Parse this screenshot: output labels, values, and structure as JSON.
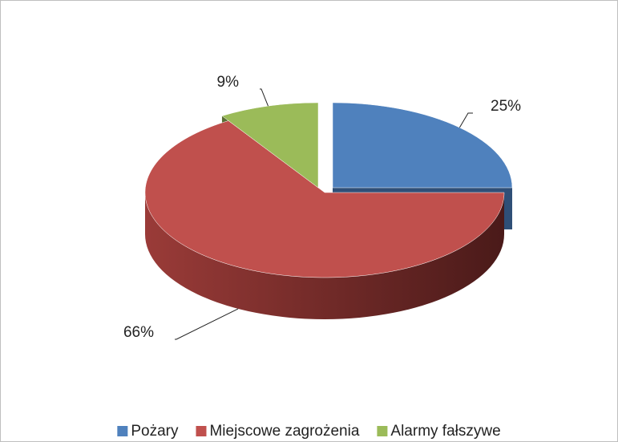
{
  "chart_data": {
    "type": "pie3d",
    "categories": [
      "Pożary",
      "Miejscowe zagrożenia",
      "Alarmy fałszywe"
    ],
    "values": [
      25,
      66,
      9
    ],
    "value_labels": [
      "25%",
      "66%",
      "9%"
    ],
    "colors": [
      "#4f81bd",
      "#c0504d",
      "#9bbb59"
    ],
    "legend": "bottom"
  }
}
